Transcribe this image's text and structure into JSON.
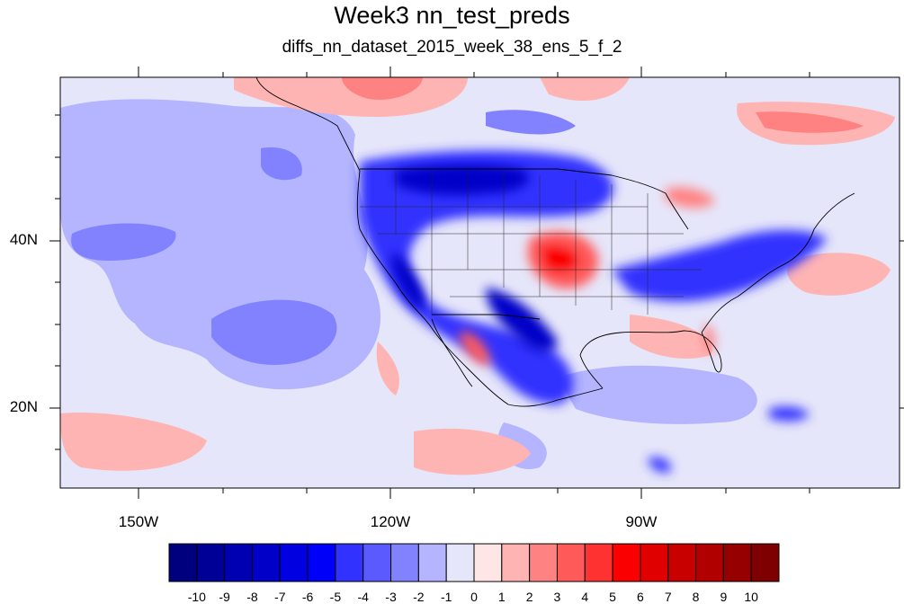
{
  "map": {
    "title": "Week3 nn_test_preds",
    "subtitle": "diffs_nn_dataset_2015_week_38_ens_5_f_2",
    "lat_labels": [
      "40N",
      "20N"
    ],
    "lon_labels": [
      "150W",
      "120W",
      "90W"
    ],
    "domain": {
      "lon_range": [
        -159.3,
        -60.5
      ],
      "lat_range": [
        10.3,
        58.9
      ]
    },
    "background_color": "#e6e6fa"
  },
  "colorbar": {
    "labels": [
      "-10",
      "-9",
      "-8",
      "-7",
      "-6",
      "-5",
      "-4",
      "-3",
      "-2",
      "-1",
      "0",
      "1",
      "2",
      "3",
      "4",
      "5",
      "6",
      "7",
      "8",
      "9",
      "10"
    ],
    "colors": [
      "#00007f",
      "#000096",
      "#0000b0",
      "#0000c8",
      "#0000e0",
      "#0000fa",
      "#3232ff",
      "#5a5aff",
      "#8282ff",
      "#b4b4ff",
      "#e6e6fa",
      "#ffe6e6",
      "#ffb4b4",
      "#ff8282",
      "#ff5a5a",
      "#ff3232",
      "#fa0000",
      "#e00000",
      "#c80000",
      "#b00000",
      "#960000",
      "#7f0000"
    ]
  }
}
